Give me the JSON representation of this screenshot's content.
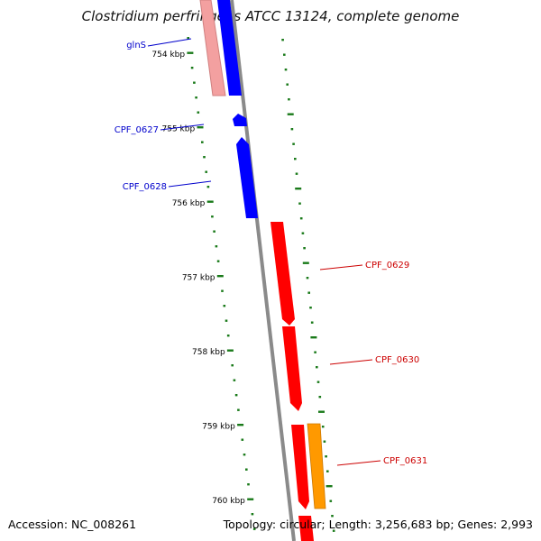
{
  "title": "Clostridium perfringens ATCC 13124, complete genome",
  "accession": "Accession: NC_008261",
  "topology": "Topology: circular; Length: 3,256,683 bp; Genes: 2,993",
  "colors": {
    "backbone": "#8a8a8a",
    "tick": "#1a7a1a",
    "reverse_gene": "#0000ff",
    "reverse_gene_faded": "#f3a0a0",
    "forward_gene": "#ff0000",
    "forward_gene_alt": "#ff9900",
    "reverse_label": "#0000cc",
    "forward_label": "#cc0000"
  },
  "ticks": [
    "754 kbp",
    "755 kbp",
    "756 kbp",
    "757 kbp",
    "758 kbp",
    "759 kbp",
    "760 kbp"
  ],
  "genes": [
    {
      "name": "glnS",
      "strand": "reverse"
    },
    {
      "name": "CPF_0627",
      "strand": "reverse"
    },
    {
      "name": "CPF_0628",
      "strand": "reverse"
    },
    {
      "name": "CPF_0629",
      "strand": "forward"
    },
    {
      "name": "CPF_0630",
      "strand": "forward"
    },
    {
      "name": "CPF_0631",
      "strand": "forward"
    }
  ]
}
